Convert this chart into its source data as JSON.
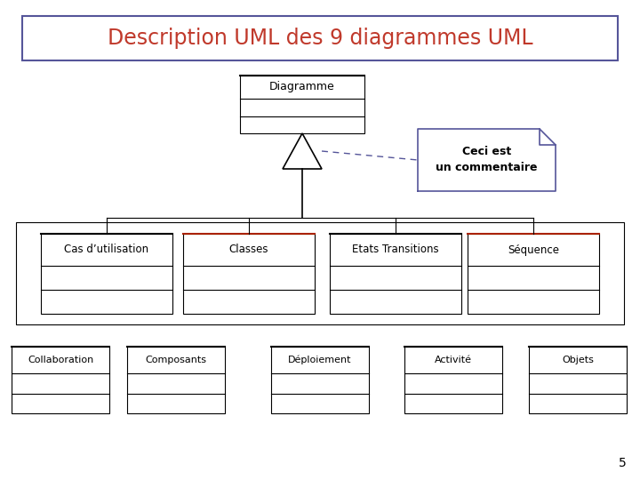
{
  "title": "Description UML des 9 diagrammes UML",
  "title_color": "#C0392B",
  "title_border_color": "#555599",
  "bg_color": "#FFFFFF",
  "line_color": "#000000",
  "comment_border_color": "#555599",
  "page_number": "5",
  "top_class": "Diagramme",
  "level1_classes": [
    "Cas d’utilisation",
    "Classes",
    "Etats Transitions",
    "Séquence"
  ],
  "level2_classes": [
    "Collaboration",
    "Composants",
    "Déploiement",
    "Activité",
    "Objets"
  ],
  "comment_text": "Ceci est\nun commentaire",
  "l1_top_border_colors": [
    "#000000",
    "#AA2200",
    "#000000",
    "#AA2200"
  ]
}
